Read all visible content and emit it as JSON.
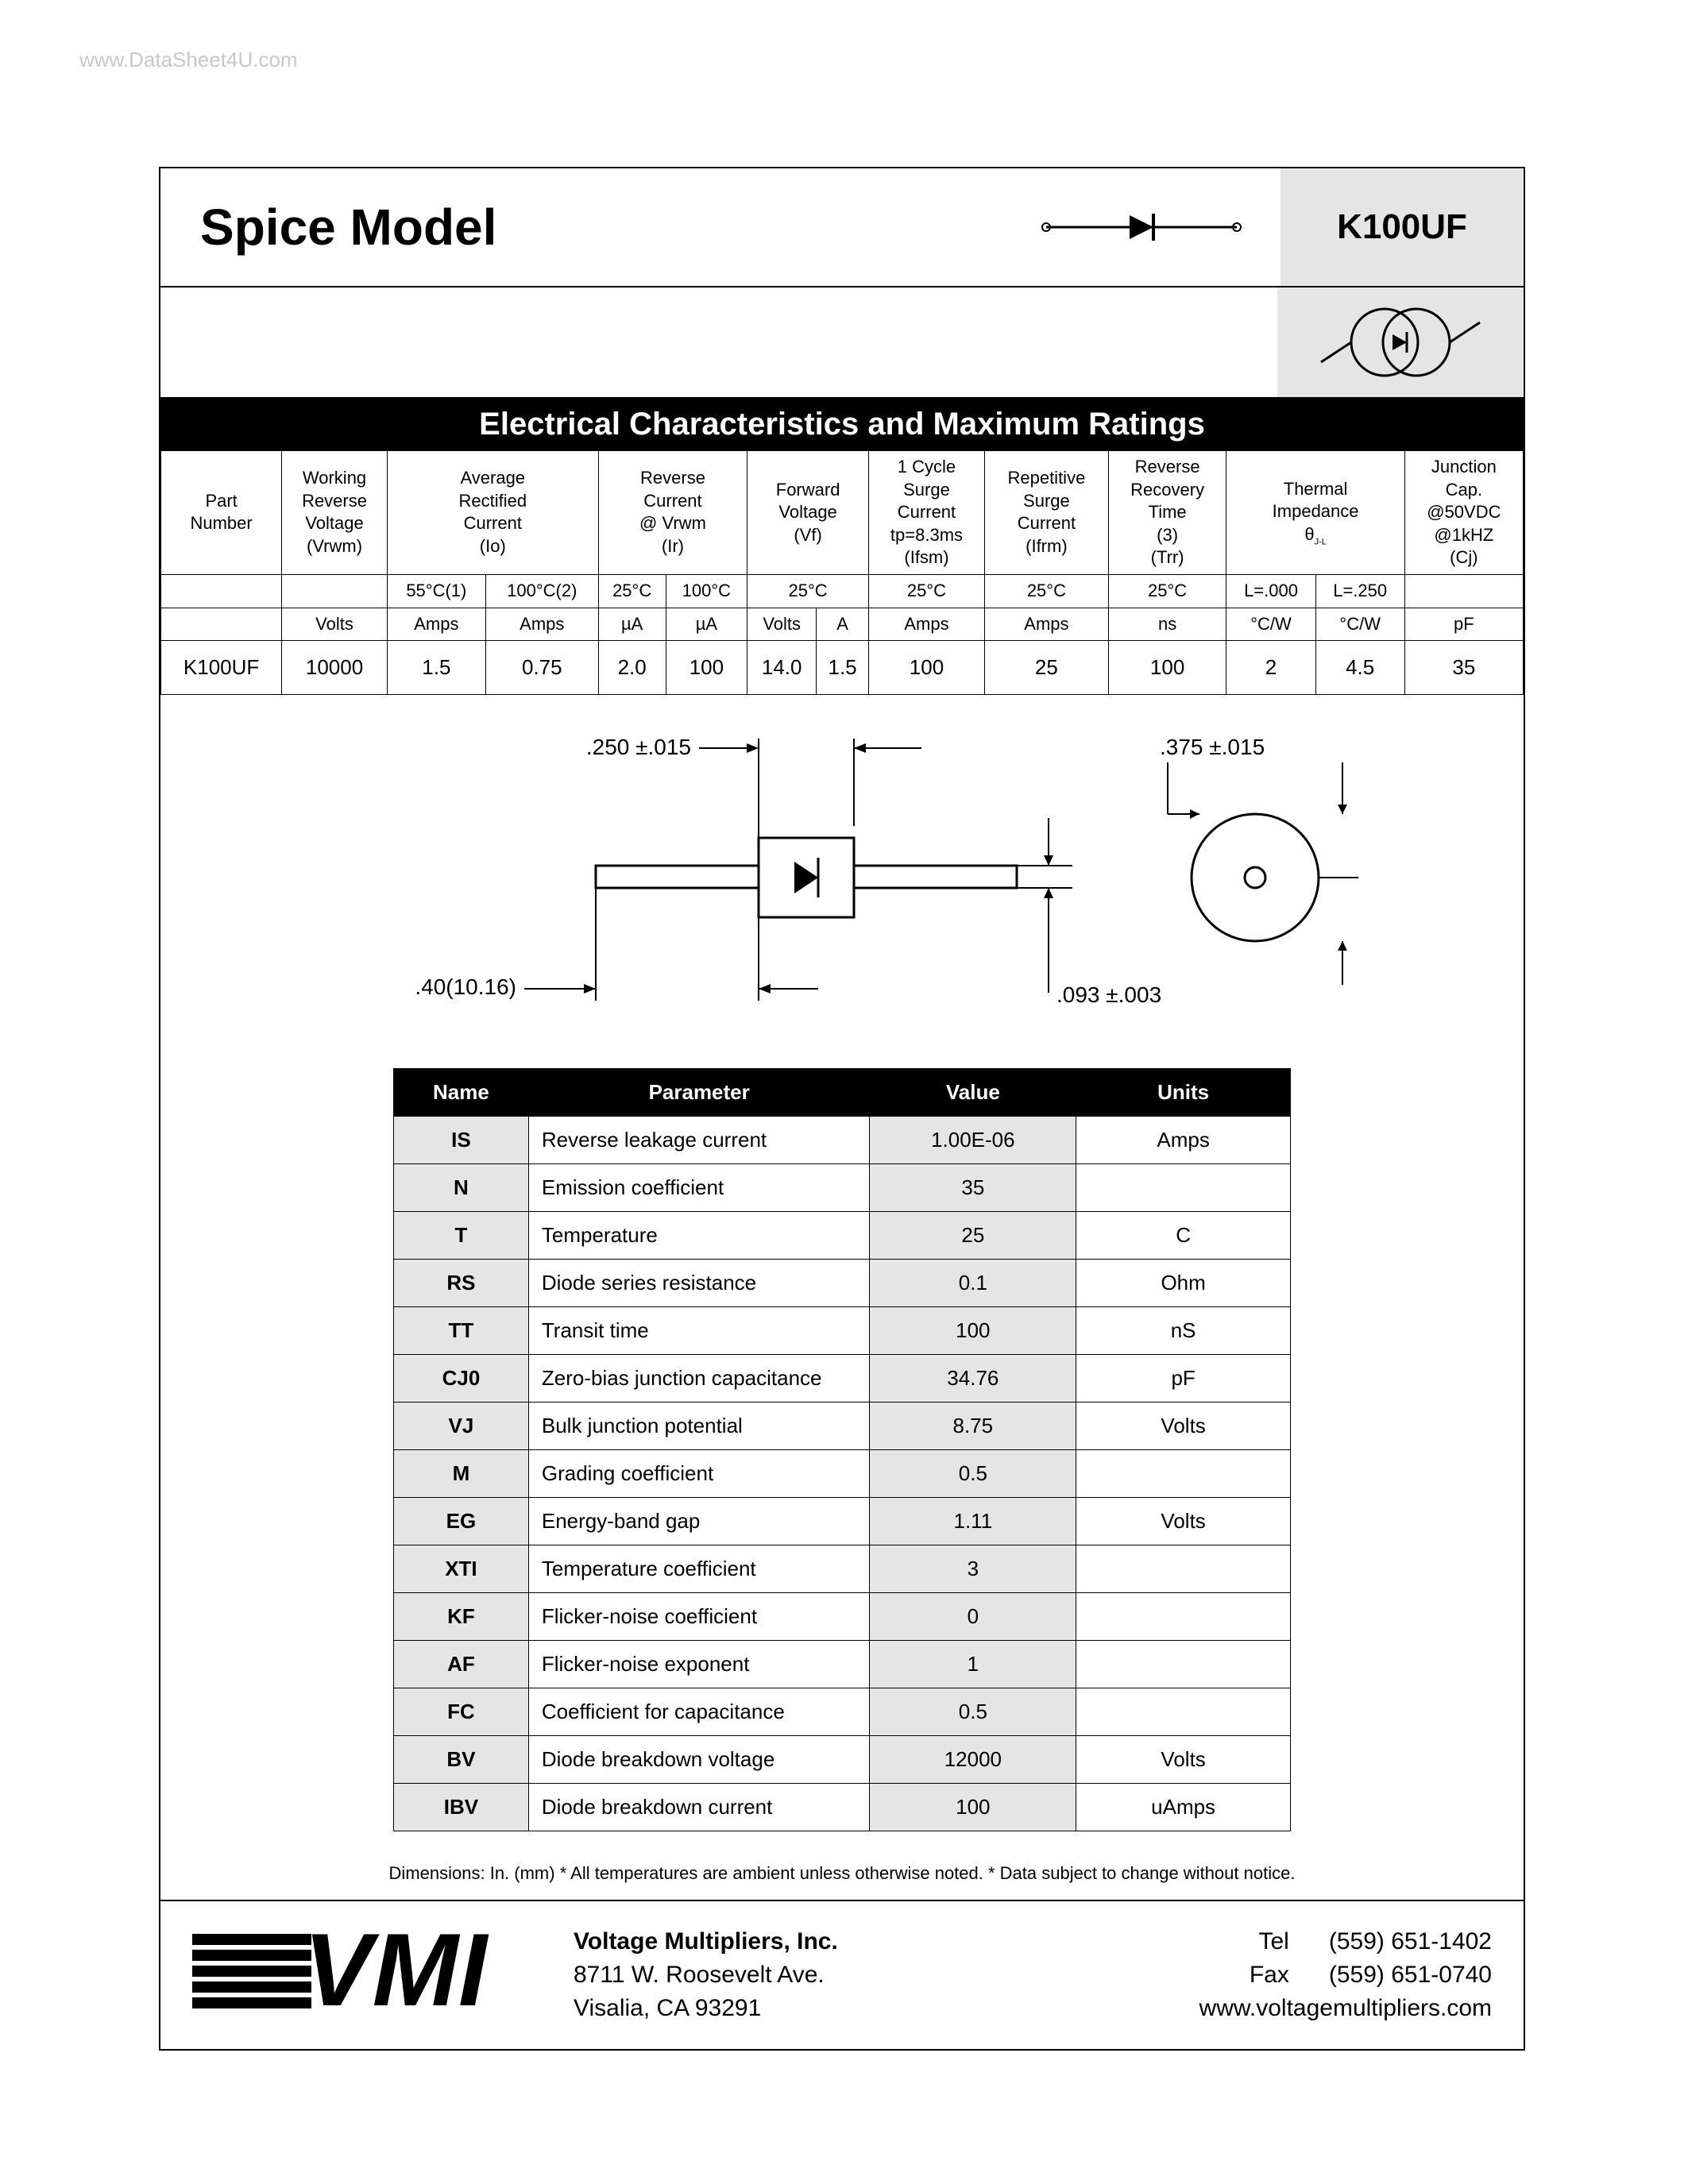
{
  "watermark": "www.DataSheet4U.com",
  "header": {
    "title": "Spice Model",
    "part": "K100UF"
  },
  "section_title": "Electrical Characteristics and Maximum Ratings",
  "elec_table": {
    "top_headers": [
      {
        "label": "Part\nNumber",
        "sym": ""
      },
      {
        "label": "Working\nReverse\nVoltage",
        "sym": "(Vrwm)"
      },
      {
        "label": "Average\nRectified\nCurrent",
        "sym": "(Io)"
      },
      {
        "label": "Reverse\nCurrent\n@ Vrwm",
        "sym": "(Ir)"
      },
      {
        "label": "Forward\nVoltage",
        "sym": "(Vf)"
      },
      {
        "label": "1 Cycle\nSurge\nCurrent\ntp=8.3ms",
        "sym": "(Ifsm)"
      },
      {
        "label": "Repetitive\nSurge\nCurrent",
        "sym": "(Ifrm)"
      },
      {
        "label": "Reverse\nRecovery\nTime\n(3)",
        "sym": "(Trr)"
      },
      {
        "label": "Thermal\nImpedance",
        "sym": "θJ-L"
      },
      {
        "label": "Junction\nCap.\n@50VDC\n@1kHZ",
        "sym": "(Cj)"
      }
    ],
    "sub_conditions": [
      "",
      "",
      "55°C(1)",
      "100°C(2)",
      "25°C",
      "100°C",
      "25°C",
      "",
      "25°C",
      "25°C",
      "25°C",
      "L=.000",
      "L=.250",
      ""
    ],
    "units_row": [
      "",
      "Volts",
      "Amps",
      "Amps",
      "µA",
      "µA",
      "Volts",
      "A",
      "Amps",
      "Amps",
      "ns",
      "°C/W",
      "°C/W",
      "pF"
    ],
    "data": [
      "K100UF",
      "10000",
      "1.5",
      "0.75",
      "2.0",
      "100",
      "14.0",
      "1.5",
      "100",
      "25",
      "100",
      "2",
      "4.5",
      "35"
    ],
    "colspans": [
      1,
      1,
      2,
      2,
      2,
      1,
      1,
      1,
      2,
      1
    ]
  },
  "dimensions": {
    "d1": ".250 ±.015",
    "d2": ".375 ±.015",
    "d3": ".40(10.16)",
    "d4": ".093 ±.003"
  },
  "spice_table": {
    "headers": [
      "Name",
      "Parameter",
      "Value",
      "Units"
    ],
    "rows": [
      {
        "name": "IS",
        "param": "Reverse leakage current",
        "value": "1.00E-06",
        "units": "Amps"
      },
      {
        "name": "N",
        "param": "Emission coefficient",
        "value": "35",
        "units": ""
      },
      {
        "name": "T",
        "param": "Temperature",
        "value": "25",
        "units": "C"
      },
      {
        "name": "RS",
        "param": "Diode series resistance",
        "value": "0.1",
        "units": "Ohm"
      },
      {
        "name": "TT",
        "param": "Transit time",
        "value": "100",
        "units": "nS"
      },
      {
        "name": "CJ0",
        "param": "Zero-bias junction capacitance",
        "value": "34.76",
        "units": "pF"
      },
      {
        "name": "VJ",
        "param": "Bulk junction potential",
        "value": "8.75",
        "units": "Volts"
      },
      {
        "name": "M",
        "param": "Grading coefficient",
        "value": "0.5",
        "units": ""
      },
      {
        "name": "EG",
        "param": "Energy-band gap",
        "value": "1.11",
        "units": "Volts"
      },
      {
        "name": "XTI",
        "param": "Temperature coefficient",
        "value": "3",
        "units": ""
      },
      {
        "name": "KF",
        "param": "Flicker-noise coefficient",
        "value": "0",
        "units": ""
      },
      {
        "name": "AF",
        "param": "Flicker-noise exponent",
        "value": "1",
        "units": ""
      },
      {
        "name": "FC",
        "param": "Coefficient for capacitance",
        "value": "0.5",
        "units": ""
      },
      {
        "name": "BV",
        "param": "Diode breakdown voltage",
        "value": "12000",
        "units": "Volts"
      },
      {
        "name": "IBV",
        "param": "Diode breakdown current",
        "value": "100",
        "units": "uAmps"
      }
    ]
  },
  "notes": "Dimensions:  In. (mm) * All temperatures are ambient unless otherwise noted. * Data subject to change without notice.",
  "footer": {
    "company": "Voltage Multipliers, Inc.",
    "addr1": "8711 W. Roosevelt Ave.",
    "addr2": "Visalia, CA  93291",
    "tel_label": "Tel",
    "tel": "(559) 651-1402",
    "fax_label": "Fax",
    "fax": "(559) 651-0740",
    "web": "www.voltagemultipliers.com"
  }
}
